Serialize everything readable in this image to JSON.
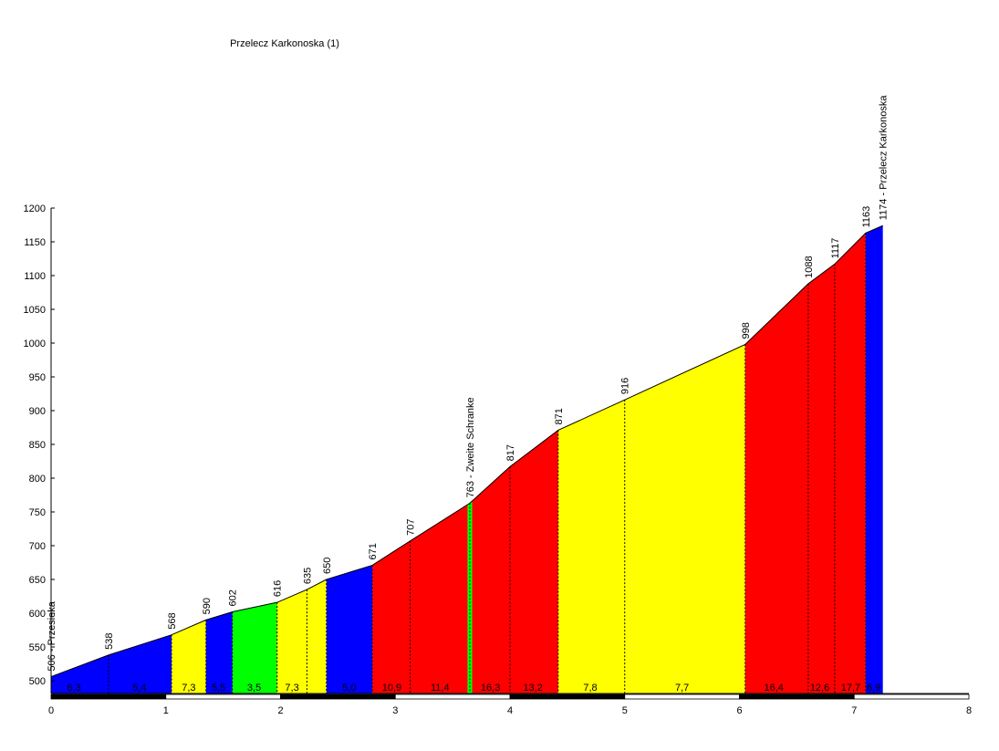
{
  "chart_data": {
    "type": "area",
    "title": "Przelecz Karkonoska (1)",
    "xlabel": "",
    "ylabel": "",
    "xlim": [
      0,
      8
    ],
    "ylim": [
      480,
      1200
    ],
    "x_ticks": [
      "0",
      "1",
      "2",
      "3",
      "4",
      "5",
      "6",
      "7",
      "8"
    ],
    "y_ticks": [
      "500",
      "550",
      "600",
      "650",
      "700",
      "750",
      "800",
      "850",
      "900",
      "950",
      "1000",
      "1050",
      "1100",
      "1150",
      "1200"
    ],
    "grid": false,
    "profile": [
      {
        "x": 0.0,
        "y": 506
      },
      {
        "x": 0.5,
        "y": 538
      },
      {
        "x": 1.05,
        "y": 568
      },
      {
        "x": 1.35,
        "y": 590
      },
      {
        "x": 1.58,
        "y": 602
      },
      {
        "x": 1.97,
        "y": 616
      },
      {
        "x": 2.23,
        "y": 635
      },
      {
        "x": 2.4,
        "y": 650
      },
      {
        "x": 2.8,
        "y": 671
      },
      {
        "x": 3.13,
        "y": 707
      },
      {
        "x": 3.65,
        "y": 763
      },
      {
        "x": 4.0,
        "y": 817
      },
      {
        "x": 4.42,
        "y": 871
      },
      {
        "x": 5.0,
        "y": 916
      },
      {
        "x": 6.05,
        "y": 998
      },
      {
        "x": 6.6,
        "y": 1088
      },
      {
        "x": 6.83,
        "y": 1117
      },
      {
        "x": 7.1,
        "y": 1163
      },
      {
        "x": 7.25,
        "y": 1174
      }
    ],
    "segments": [
      {
        "x0": 0.0,
        "x1": 1.05,
        "color": "#0000ff",
        "gradients": [
          {
            "x": 0.2,
            "label": "6,3"
          },
          {
            "x": 0.77,
            "label": "5,4"
          }
        ]
      },
      {
        "x0": 1.05,
        "x1": 1.35,
        "color": "#ffff00",
        "gradients": [
          {
            "x": 1.2,
            "label": "7,3"
          }
        ]
      },
      {
        "x0": 1.35,
        "x1": 1.58,
        "color": "#0000ff",
        "gradients": [
          {
            "x": 1.46,
            "label": "5,5"
          }
        ]
      },
      {
        "x0": 1.58,
        "x1": 1.97,
        "color": "#00ff00",
        "gradients": [
          {
            "x": 1.77,
            "label": "3,5"
          }
        ]
      },
      {
        "x0": 1.97,
        "x1": 2.4,
        "color": "#ffff00",
        "gradients": [
          {
            "x": 2.1,
            "label": "7,3"
          }
        ]
      },
      {
        "x0": 2.4,
        "x1": 2.8,
        "color": "#0000ff",
        "gradients": [
          {
            "x": 2.6,
            "label": "5,0"
          }
        ]
      },
      {
        "x0": 2.8,
        "x1": 3.63,
        "color": "#ff0000",
        "gradients": [
          {
            "x": 2.97,
            "label": "10,9"
          },
          {
            "x": 3.39,
            "label": "11,4"
          }
        ]
      },
      {
        "x0": 3.63,
        "x1": 3.67,
        "color": "#00ff00",
        "gradients": []
      },
      {
        "x0": 3.67,
        "x1": 4.42,
        "color": "#ff0000",
        "gradients": [
          {
            "x": 3.83,
            "label": "16,3"
          },
          {
            "x": 4.2,
            "label": "13,2"
          }
        ]
      },
      {
        "x0": 4.42,
        "x1": 6.05,
        "color": "#ffff00",
        "gradients": [
          {
            "x": 4.7,
            "label": "7,8"
          },
          {
            "x": 5.5,
            "label": "7,7"
          }
        ]
      },
      {
        "x0": 6.05,
        "x1": 7.1,
        "color": "#ff0000",
        "gradients": [
          {
            "x": 6.3,
            "label": "16,4"
          },
          {
            "x": 6.7,
            "label": "12,6"
          },
          {
            "x": 6.97,
            "label": "17,7"
          }
        ]
      },
      {
        "x0": 7.1,
        "x1": 7.25,
        "color": "#0000ff",
        "gradients": [
          {
            "x": 7.17,
            "label": "6,9"
          }
        ]
      }
    ],
    "point_labels": [
      {
        "x": 0.0,
        "y": 506,
        "label": "506 - Przesieka"
      },
      {
        "x": 0.5,
        "y": 538,
        "label": "538"
      },
      {
        "x": 1.05,
        "y": 568,
        "label": "568"
      },
      {
        "x": 1.35,
        "y": 590,
        "label": "590"
      },
      {
        "x": 1.58,
        "y": 602,
        "label": "602"
      },
      {
        "x": 1.97,
        "y": 616,
        "label": "616"
      },
      {
        "x": 2.23,
        "y": 635,
        "label": "635"
      },
      {
        "x": 2.4,
        "y": 650,
        "label": "650"
      },
      {
        "x": 2.8,
        "y": 671,
        "label": "671"
      },
      {
        "x": 3.13,
        "y": 707,
        "label": "707"
      },
      {
        "x": 3.65,
        "y": 763,
        "label": "763 - Zweite Schranke"
      },
      {
        "x": 4.0,
        "y": 817,
        "label": "817"
      },
      {
        "x": 4.42,
        "y": 871,
        "label": "871"
      },
      {
        "x": 5.0,
        "y": 916,
        "label": "916"
      },
      {
        "x": 6.05,
        "y": 998,
        "label": "998"
      },
      {
        "x": 6.6,
        "y": 1088,
        "label": "1088"
      },
      {
        "x": 6.83,
        "y": 1117,
        "label": "1117"
      },
      {
        "x": 7.1,
        "y": 1163,
        "label": "1163"
      },
      {
        "x": 7.25,
        "y": 1174,
        "label": "1174 - Przelecz Karkonoska"
      }
    ],
    "distance_bar_colors": [
      "#000000",
      "#ffffff"
    ]
  }
}
